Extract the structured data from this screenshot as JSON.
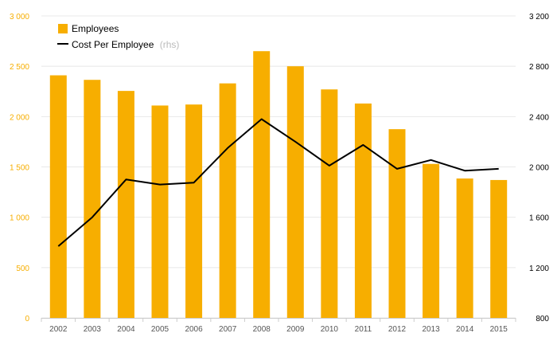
{
  "chart_data": {
    "type": "bar",
    "categories": [
      "2002",
      "2003",
      "2004",
      "2005",
      "2006",
      "2007",
      "2008",
      "2009",
      "2010",
      "2011",
      "2012",
      "2013",
      "2014",
      "2015"
    ],
    "series": [
      {
        "name": "Employees",
        "type": "bar",
        "axis": "left",
        "color": "#F7AE00",
        "values": [
          2410,
          2365,
          2255,
          2110,
          2120,
          2330,
          2650,
          2500,
          2270,
          2130,
          1875,
          1530,
          1385,
          1370
        ]
      },
      {
        "name": "Cost Per Employee",
        "type": "line",
        "axis": "right",
        "color": "#000000",
        "values": [
          1370,
          1600,
          1900,
          1860,
          1875,
          2150,
          2380,
          2200,
          2010,
          2175,
          1985,
          2055,
          1970,
          1985
        ]
      }
    ],
    "left_axis": {
      "ylim": [
        0,
        3000
      ],
      "ticks": [
        0,
        500,
        1000,
        1500,
        2000,
        2500,
        3000
      ],
      "tick_labels": [
        "0",
        "500",
        "1 000",
        "1 500",
        "2 000",
        "2 500",
        "3 000"
      ],
      "color": "#F7AE00"
    },
    "right_axis": {
      "ylim": [
        800,
        3200
      ],
      "ticks": [
        800,
        1200,
        1600,
        2000,
        2400,
        2800,
        3200
      ],
      "tick_labels": [
        "800",
        "1 200",
        "1 600",
        "2 000",
        "2 400",
        "2 800",
        "3 200"
      ],
      "color": "#000000"
    },
    "grid": true,
    "gridline_color": "#e8e8e8",
    "legend": {
      "position": "top-left",
      "items": [
        {
          "label": "Employees",
          "suffix": ""
        },
        {
          "label": "Cost Per Employee",
          "suffix": "(rhs)"
        }
      ]
    }
  }
}
